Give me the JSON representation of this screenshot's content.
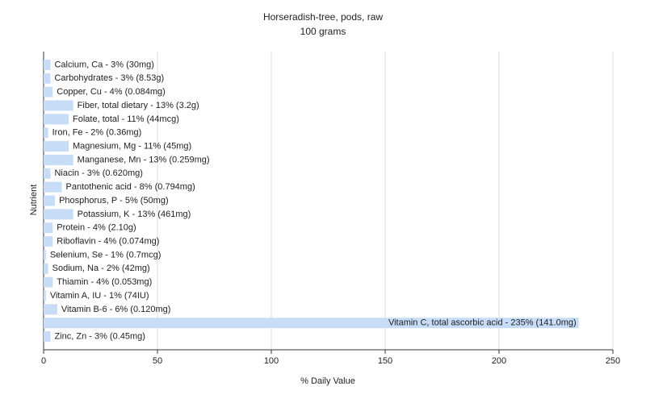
{
  "chart_data": {
    "type": "bar",
    "orientation": "horizontal",
    "title": "Horseradish-tree, pods, raw",
    "subtitle": "100 grams",
    "x_label": "% Daily Value",
    "y_label": "Nutrient",
    "categories": [
      "Calcium, Ca - 3% (30mg)",
      "Carbohydrates - 3% (8.53g)",
      "Copper, Cu - 4% (0.084mg)",
      "Fiber, total dietary - 13% (3.2g)",
      "Folate, total - 11% (44mcg)",
      "Iron, Fe - 2% (0.36mg)",
      "Magnesium, Mg - 11% (45mg)",
      "Manganese, Mn - 13% (0.259mg)",
      "Niacin - 3% (0.620mg)",
      "Pantothenic acid - 8% (0.794mg)",
      "Phosphorus, P - 5% (50mg)",
      "Potassium, K - 13% (461mg)",
      "Protein - 4% (2.10g)",
      "Riboflavin - 4% (0.074mg)",
      "Selenium, Se - 1% (0.7mcg)",
      "Sodium, Na - 2% (42mg)",
      "Thiamin - 4% (0.053mg)",
      "Vitamin A, IU - 1% (74IU)",
      "Vitamin B-6 - 6% (0.120mg)",
      "Vitamin C, total ascorbic acid - 235% (141.0mg)",
      "Zinc, Zn - 3% (0.45mg)"
    ],
    "values": [
      3,
      3,
      4,
      13,
      11,
      2,
      11,
      13,
      3,
      8,
      5,
      13,
      4,
      4,
      1,
      2,
      4,
      1,
      6,
      235,
      3
    ],
    "color": "#c6dcf7",
    "xlim": [
      0,
      250
    ],
    "xticks": [
      0,
      50,
      100,
      150,
      200,
      250
    ],
    "grid": true
  }
}
